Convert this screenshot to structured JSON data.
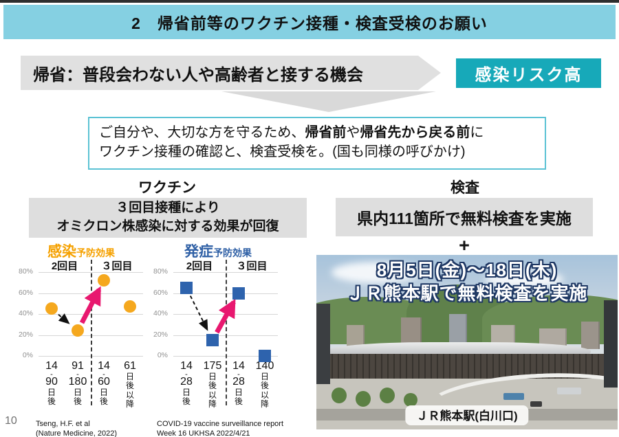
{
  "page": {
    "number": "10"
  },
  "header": {
    "title": "2　帰省前等のワクチン接種・検査受検のお願い"
  },
  "banner": {
    "text": "帰省：普段会わない人や高齢者と接する機会",
    "risk_label": "感染リスク高"
  },
  "notice": {
    "line1_segments": [
      {
        "text": "ご自分や、大切な方を守るため、",
        "bold": false
      },
      {
        "text": "帰省前",
        "bold": true
      },
      {
        "text": "や",
        "bold": false
      },
      {
        "text": "帰省先から戻る前",
        "bold": true
      },
      {
        "text": "に",
        "bold": false
      }
    ],
    "line2": "ワクチン接種の確認と、検査受検を。(国も同様の呼びかけ)"
  },
  "vaccine": {
    "title": "ワクチン",
    "highlight_line1": "３回目接種により",
    "highlight_line2": "オミクロン株感染に対する効果が回復"
  },
  "chart_data": [
    {
      "type": "scatter",
      "title_main": "感染",
      "title_sub": "予防効果",
      "marker": "circle",
      "color": "#F5A81E",
      "phase_labels": [
        "2回目",
        "３回目"
      ],
      "x_tick_lines": [
        [
          "14",
          "-",
          "90",
          "日",
          "後"
        ],
        [
          "91",
          "-",
          "180",
          "日",
          "後"
        ],
        [
          "14",
          "-",
          "60",
          "日",
          "後"
        ],
        [
          "61",
          "日",
          "後",
          "以",
          "降"
        ]
      ],
      "values": [
        45,
        24,
        72,
        47
      ],
      "yticks": [
        "80%",
        "60%",
        "40%",
        "20%",
        "0%"
      ],
      "ylim": [
        0,
        80
      ],
      "grid": true,
      "annotations": [
        {
          "style": "dashed",
          "from_index": 0,
          "to_index": 1,
          "color": "#111111"
        },
        {
          "style": "bold",
          "from_index": 1,
          "to_index": 2,
          "color": "#E8186F"
        }
      ],
      "source_lines": [
        "Tseng, H.F. et al",
        "(Nature Medicine, 2022)"
      ]
    },
    {
      "type": "scatter",
      "title_main": "発症",
      "title_sub": "予防効果",
      "marker": "square",
      "color": "#2E63AD",
      "phase_labels": [
        "2回目",
        "３回目"
      ],
      "x_tick_lines": [
        [
          "14",
          "-",
          "28",
          "日",
          "後"
        ],
        [
          "175",
          "日",
          "後",
          "以",
          "降"
        ],
        [
          "14",
          "-",
          "28",
          "日",
          "後"
        ],
        [
          "140",
          "日",
          "後",
          "以",
          "降"
        ]
      ],
      "values": [
        65,
        15,
        60,
        0
      ],
      "yticks": [
        "80%",
        "60%",
        "40%",
        "20%",
        "0%"
      ],
      "ylim": [
        0,
        80
      ],
      "grid": true,
      "annotations": [
        {
          "style": "dashed",
          "from_index": 0,
          "to_index": 1,
          "color": "#111111"
        },
        {
          "style": "bold",
          "from_index": 1,
          "to_index": 2,
          "color": "#E8186F"
        }
      ],
      "source_lines": [
        "COVID-19 vaccine surveillance report",
        "Week 16 UKHSA 2022/4/21"
      ]
    }
  ],
  "test": {
    "title": "検査",
    "highlight": "県内111箇所で無料検査を実施",
    "plus": "+"
  },
  "photo": {
    "overlay_line1": "8月5日(金)～18日(木)",
    "overlay_line2": "ＪＲ熊本駅で無料検査を実施",
    "caption": "ＪＲ熊本駅(白川口)"
  },
  "colors": {
    "header_bg": "#85D0E2",
    "risk_bg": "#17A9B9",
    "highlight_bg": "#DEDEDE",
    "infection_orange": "#F5A81E",
    "onset_blue": "#2E63AD",
    "arrow_pink": "#E8186F",
    "notice_border": "#5BC2D4"
  }
}
